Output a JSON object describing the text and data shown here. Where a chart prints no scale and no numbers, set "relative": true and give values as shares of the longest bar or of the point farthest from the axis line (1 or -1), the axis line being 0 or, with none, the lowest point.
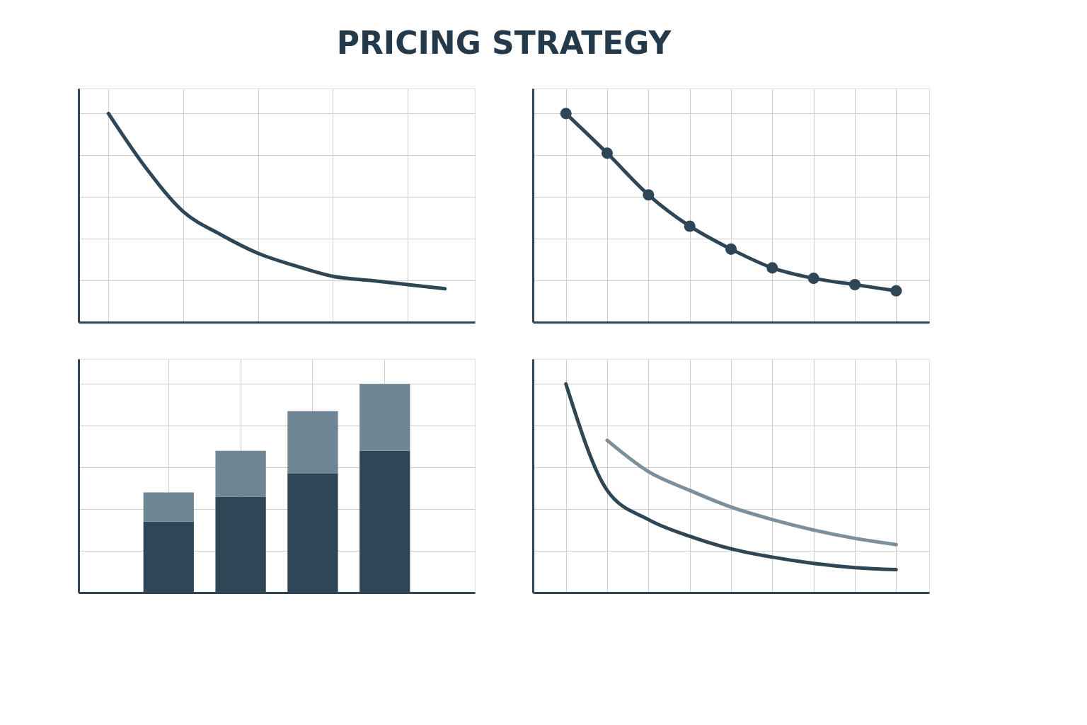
{
  "chart_data": [
    {
      "type": "line",
      "title": "PRICING STRATEGY",
      "relative": true,
      "grid": true,
      "tick_labels": false,
      "marker": "none",
      "categories": [
        null,
        null,
        null,
        null,
        null,
        null,
        null,
        null,
        null,
        null
      ],
      "series": [
        {
          "color": "#2f4656",
          "values": [
            1,
            0.74,
            0.53,
            0.42,
            0.33,
            0.27,
            0.22,
            0.2,
            0.18,
            0.16
          ]
        }
      ]
    },
    {
      "type": "line",
      "relative": true,
      "grid": true,
      "tick_labels": false,
      "marker": "circle",
      "categories": [
        null,
        null,
        null,
        null,
        null,
        null,
        null,
        null,
        null
      ],
      "series": [
        {
          "color": "#2f4656",
          "values": [
            1,
            0.81,
            0.61,
            0.46,
            0.35,
            0.26,
            0.21,
            0.18,
            0.15
          ]
        }
      ]
    },
    {
      "type": "bar",
      "relative": true,
      "grid": true,
      "tick_labels": false,
      "stacked": true,
      "categories": [
        null,
        null,
        null,
        null
      ],
      "series": [
        {
          "color": "#2f4656",
          "values": [
            0.34,
            0.46,
            0.57,
            0.68
          ]
        },
        {
          "color": "#6e8594",
          "values": [
            0.14,
            0.22,
            0.3,
            0.32
          ]
        }
      ]
    },
    {
      "type": "line",
      "relative": true,
      "grid": true,
      "tick_labels": false,
      "marker": "none",
      "categories": [
        null,
        null,
        null,
        null,
        null,
        null,
        null,
        null,
        null
      ],
      "series": [
        {
          "color": "#2f4656",
          "values": [
            1,
            0.49,
            0.35,
            0.27,
            0.21,
            0.17,
            0.14,
            0.12,
            0.11
          ]
        },
        {
          "color": "#7b8f9c",
          "values": [
            null,
            0.73,
            0.58,
            0.49,
            0.41,
            0.35,
            0.3,
            0.26,
            0.23
          ]
        }
      ]
    }
  ]
}
